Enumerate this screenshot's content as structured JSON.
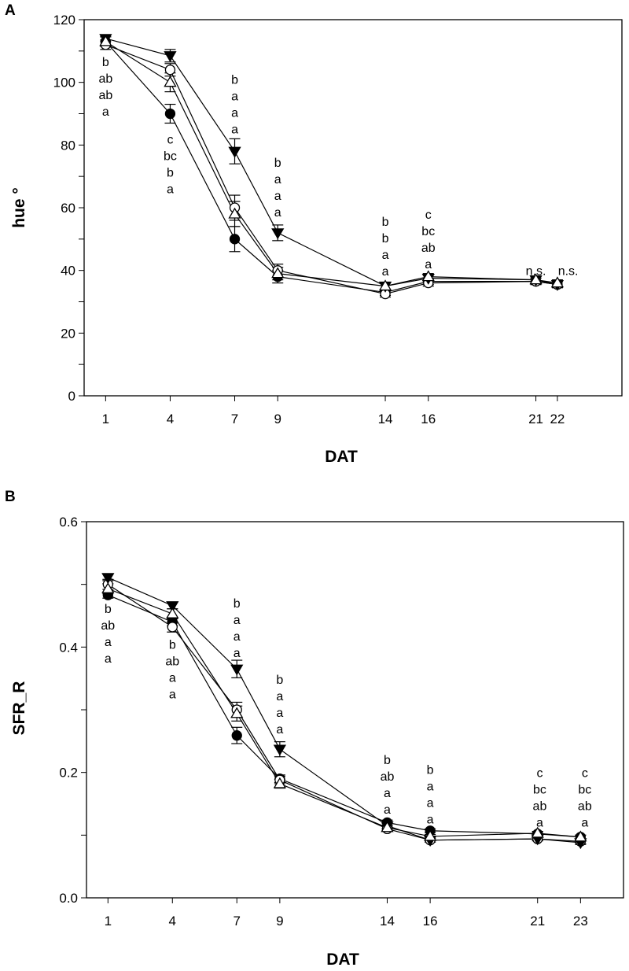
{
  "chart_data": [
    {
      "type": "line",
      "panel_label": "A",
      "xlabel": "DAT",
      "ylabel": "hue °",
      "xlim": [
        0,
        25
      ],
      "ylim": [
        0,
        120
      ],
      "xticks": [
        1,
        4,
        7,
        9,
        14,
        16,
        21,
        22
      ],
      "xtick_labels": [
        "1",
        "4",
        "7",
        "9",
        "14",
        "16",
        "21",
        "22"
      ],
      "yticks": [
        0,
        20,
        40,
        60,
        80,
        100,
        120
      ],
      "yminor_step": 10,
      "grid": false,
      "x": [
        1,
        4,
        7,
        9,
        14,
        16,
        21,
        22
      ],
      "series": [
        {
          "marker": "filled-circle",
          "values": [
            113,
            90,
            50,
            38,
            33,
            36.5,
            36.5,
            35.5
          ],
          "err": [
            1.5,
            3,
            4,
            2,
            1,
            1,
            1,
            1
          ]
        },
        {
          "marker": "open-circle",
          "values": [
            112,
            104,
            60,
            40,
            32.5,
            36,
            36.5,
            35.5
          ],
          "err": [
            1.5,
            2,
            4,
            2,
            1,
            1,
            1,
            1
          ]
        },
        {
          "marker": "filled-down-triangle",
          "values": [
            114,
            108.5,
            78,
            52,
            35,
            37.5,
            37,
            35.5
          ],
          "err": [
            1,
            2,
            4,
            2.5,
            1,
            1,
            1,
            1
          ]
        },
        {
          "marker": "open-up-triangle",
          "values": [
            113,
            100,
            58,
            39,
            35,
            38,
            37,
            36
          ],
          "err": [
            1.5,
            3,
            4,
            2,
            1,
            1,
            1,
            1
          ]
        }
      ],
      "annotations": [
        {
          "x": 1,
          "y": 106.7,
          "lines": [
            "b",
            "ab",
            "ab",
            "a"
          ]
        },
        {
          "x": 4,
          "y": 82,
          "lines": [
            "c",
            "bc",
            "b",
            "a"
          ]
        },
        {
          "x": 7,
          "y": 101,
          "lines": [
            "b",
            "a",
            "a",
            "a"
          ]
        },
        {
          "x": 9,
          "y": 74.5,
          "lines": [
            "b",
            "a",
            "a",
            "a"
          ]
        },
        {
          "x": 14,
          "y": 55.7,
          "lines": [
            "b",
            "b",
            "a",
            "a"
          ]
        },
        {
          "x": 16,
          "y": 58,
          "lines": [
            "c",
            "bc",
            "ab",
            "a"
          ]
        },
        {
          "x": 21,
          "y": 40,
          "lines": [
            "n.s."
          ]
        },
        {
          "x": 22.5,
          "y": 40,
          "lines": [
            "n.s."
          ]
        }
      ]
    },
    {
      "type": "line",
      "panel_label": "B",
      "xlabel": "DAT",
      "ylabel": "SFR_R",
      "xlim": [
        0,
        25
      ],
      "ylim": [
        0,
        0.6
      ],
      "xticks": [
        1,
        4,
        7,
        9,
        14,
        16,
        21,
        23
      ],
      "xtick_labels": [
        "1",
        "4",
        "7",
        "9",
        "14",
        "16",
        "21",
        "23"
      ],
      "yticks": [
        0.0,
        0.2,
        0.4,
        0.6
      ],
      "ytick_labels": [
        "0.0",
        "0.2",
        "0.4",
        "0.6"
      ],
      "yminor_step": 0.1,
      "grid": false,
      "x": [
        1,
        4,
        7,
        9,
        14,
        16,
        21,
        23
      ],
      "series": [
        {
          "marker": "filled-circle",
          "values": [
            0.483,
            0.44,
            0.259,
            0.19,
            0.12,
            0.107,
            0.102,
            0.097
          ],
          "err": [
            0.005,
            0.006,
            0.013,
            0.006,
            0.004,
            0.003,
            0.003,
            0.003
          ]
        },
        {
          "marker": "open-circle",
          "values": [
            0.5,
            0.432,
            0.3,
            0.188,
            0.11,
            0.092,
            0.094,
            0.09
          ],
          "err": [
            0.008,
            0.008,
            0.012,
            0.006,
            0.004,
            0.003,
            0.003,
            0.003
          ]
        },
        {
          "marker": "filled-down-triangle",
          "values": [
            0.511,
            0.466,
            0.365,
            0.237,
            0.115,
            0.092,
            0.094,
            0.088
          ],
          "err": [
            0.005,
            0.005,
            0.014,
            0.012,
            0.004,
            0.003,
            0.003,
            0.003
          ]
        },
        {
          "marker": "open-up-triangle",
          "values": [
            0.493,
            0.453,
            0.294,
            0.182,
            0.112,
            0.098,
            0.103,
            0.097
          ],
          "err": [
            0.008,
            0.008,
            0.012,
            0.007,
            0.004,
            0.003,
            0.003,
            0.003
          ]
        }
      ],
      "annotations": [
        {
          "x": 1,
          "y": 0.462,
          "lines": [
            "b",
            "ab",
            "a",
            "a"
          ]
        },
        {
          "x": 4,
          "y": 0.405,
          "lines": [
            "b",
            "ab",
            "a",
            "a"
          ]
        },
        {
          "x": 7,
          "y": 0.471,
          "lines": [
            "b",
            "a",
            "a",
            "a"
          ]
        },
        {
          "x": 9,
          "y": 0.349,
          "lines": [
            "b",
            "a",
            "a",
            "a"
          ]
        },
        {
          "x": 14,
          "y": 0.221,
          "lines": [
            "b",
            "ab",
            "a",
            "a"
          ]
        },
        {
          "x": 16,
          "y": 0.205,
          "lines": [
            "b",
            "a",
            "a",
            "a"
          ]
        },
        {
          "x": 21.1,
          "y": 0.2,
          "lines": [
            "c",
            "bc",
            "ab",
            "a"
          ]
        },
        {
          "x": 23.2,
          "y": 0.2,
          "lines": [
            "c",
            "bc",
            "ab",
            "a"
          ]
        }
      ]
    }
  ]
}
